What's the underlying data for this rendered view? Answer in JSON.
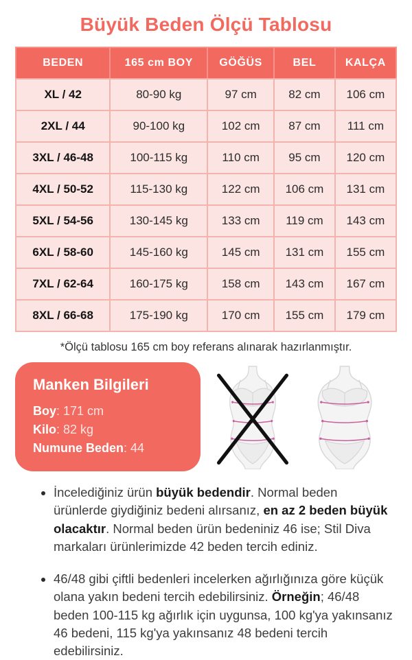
{
  "colors": {
    "coral": "#F2695F",
    "row_pink": "#FBE4E2",
    "grid_pink": "#F3B4AF",
    "measure_line_pink": "#C9619C",
    "figure_gray": "#E9E9E9",
    "cross_black": "#111111"
  },
  "title": "Büyük Beden Ölçü Tablosu",
  "table": {
    "columns": [
      "BEDEN",
      "165 cm BOY",
      "GÖĞÜS",
      "BEL",
      "KALÇA"
    ],
    "rows": [
      [
        "XL / 42",
        "80-90 kg",
        "97 cm",
        "82 cm",
        "106 cm"
      ],
      [
        "2XL / 44",
        "90-100 kg",
        "102 cm",
        "87 cm",
        "111 cm"
      ],
      [
        "3XL / 46-48",
        "100-115 kg",
        "110 cm",
        "95 cm",
        "120 cm"
      ],
      [
        "4XL / 50-52",
        "115-130 kg",
        "122 cm",
        "106 cm",
        "131 cm"
      ],
      [
        "5XL / 54-56",
        "130-145 kg",
        "133 cm",
        "119 cm",
        "143 cm"
      ],
      [
        "6XL / 58-60",
        "145-160 kg",
        "145 cm",
        "131 cm",
        "155 cm"
      ],
      [
        "7XL / 62-64",
        "160-175 kg",
        "158 cm",
        "143 cm",
        "167 cm"
      ],
      [
        "8XL / 66-68",
        "175-190 kg",
        "170 cm",
        "155 cm",
        "179 cm"
      ]
    ]
  },
  "footnote": "*Ölçü tablosu 165 cm boy referans alınarak hazırlanmıştır.",
  "model_info": {
    "title": "Manken Bilgileri",
    "lines": [
      {
        "bold": "Boy",
        "rest": ": 171 cm"
      },
      {
        "bold": "Kilo",
        "rest": ": 82 kg"
      },
      {
        "bold": "Numune Beden",
        "rest": ": 44"
      }
    ]
  },
  "figures": {
    "left_icon": "crossed-out-slim-figure-icon",
    "right_icon": "plus-size-figure-measurements-icon"
  },
  "notes": {
    "bullets": [
      {
        "segments": [
          {
            "t": "İncelediğiniz ürün ",
            "b": false
          },
          {
            "t": "büyük bedendir",
            "b": true
          },
          {
            "t": ". Normal beden ürünlerde giydiğiniz bedeni alırsanız, ",
            "b": false
          },
          {
            "t": "en az 2 beden büyük olacaktır",
            "b": true
          },
          {
            "t": ". Normal beden ürün bedeniniz 46 ise; Stil Diva markaları ürünlerimizde 42 beden tercih ediniz.",
            "b": false
          }
        ]
      },
      {
        "segments": [
          {
            "t": "46/48 gibi çiftli bedenleri incelerken ağırlığınıza göre küçük olana yakın bedeni tercih edebilirsiniz. ",
            "b": false
          },
          {
            "t": "Örneğin",
            "b": true
          },
          {
            "t": "; 46/48 beden 100-115 kg ağırlık için uygunsa, 100 kg'ya yakınsanız 46 bedeni, 115 kg'ya yakınsanız 48 bedeni tercih edebilirsiniz.",
            "b": false
          }
        ]
      }
    ]
  }
}
